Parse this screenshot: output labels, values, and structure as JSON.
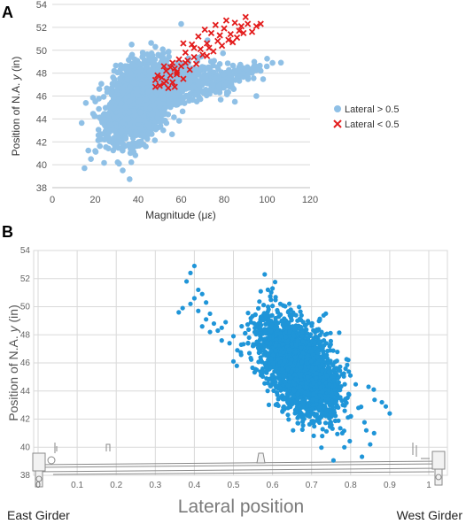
{
  "panels": {
    "a": {
      "label": "A"
    },
    "b": {
      "label": "B"
    }
  },
  "chart_data": [
    {
      "type": "scatter",
      "panel": "A",
      "xlabel": "Magnitude (με)",
      "ylabel_parts": [
        "Position of N.A. ",
        "y",
        " (in)"
      ],
      "xlim": [
        0,
        120
      ],
      "ylim": [
        38,
        54
      ],
      "xticks": [
        0,
        20,
        40,
        60,
        80,
        100,
        120
      ],
      "yticks": [
        38,
        40,
        42,
        44,
        46,
        48,
        50,
        52,
        54
      ],
      "grid": "horizontal",
      "legend_position": "right",
      "series": [
        {
          "name": "Lateral > 0.5",
          "marker": "circle",
          "color": "#8fc0e6",
          "clusters": [
            {
              "cx": 40,
              "cy": 45.5,
              "sx": 7,
              "sy": 1.6,
              "n": 1700
            },
            {
              "cx": 58,
              "cy": 47,
              "sx": 9,
              "sy": 1.0,
              "n": 350
            },
            {
              "cx": 80,
              "cy": 47.3,
              "sx": 8,
              "sy": 0.5,
              "n": 160
            }
          ],
          "points": [
            [
              15,
              39.7
            ],
            [
              18,
              40.5
            ],
            [
              20,
              41.2
            ],
            [
              60,
              52.3
            ],
            [
              95,
              46
            ],
            [
              97,
              48.2
            ],
            [
              85,
              45.5
            ],
            [
              22,
              42.2
            ],
            [
              33,
              41.8
            ]
          ]
        },
        {
          "name": "Lateral < 0.5",
          "marker": "x",
          "color": "#e31b1b",
          "points": [
            [
              48,
              47.4
            ],
            [
              49,
              47.8
            ],
            [
              50,
              46.9
            ],
            [
              51,
              47.6
            ],
            [
              52,
              47.1
            ],
            [
              53,
              48.2
            ],
            [
              53,
              47.3
            ],
            [
              54,
              46.7
            ],
            [
              55,
              48.5
            ],
            [
              55,
              47.8
            ],
            [
              56,
              48.9
            ],
            [
              56,
              47.2
            ],
            [
              57,
              48.4
            ],
            [
              57,
              46.8
            ],
            [
              58,
              47.9
            ],
            [
              59,
              49.2
            ],
            [
              60,
              48.6
            ],
            [
              61,
              47.5
            ],
            [
              62,
              49.8
            ],
            [
              63,
              49.1
            ],
            [
              64,
              48.3
            ],
            [
              65,
              50.5
            ],
            [
              66,
              49.4
            ],
            [
              67,
              48.8
            ],
            [
              68,
              51.2
            ],
            [
              69,
              50.1
            ],
            [
              70,
              49.6
            ],
            [
              71,
              51.8
            ],
            [
              72,
              50.6
            ],
            [
              73,
              50.2
            ],
            [
              74,
              51.5
            ],
            [
              75,
              49.9
            ],
            [
              76,
              52.2
            ],
            [
              77,
              50.8
            ],
            [
              78,
              51.3
            ],
            [
              79,
              50.4
            ],
            [
              80,
              51.9
            ],
            [
              81,
              52.6
            ],
            [
              82,
              50.9
            ],
            [
              83,
              51.4
            ],
            [
              84,
              50.7
            ],
            [
              85,
              52.4
            ],
            [
              86,
              51.1
            ],
            [
              87,
              51.7
            ],
            [
              88,
              52.1
            ],
            [
              89,
              51.5
            ],
            [
              90,
              52.9
            ],
            [
              91,
              52.3
            ],
            [
              93,
              51.6
            ],
            [
              95,
              52.1
            ],
            [
              97,
              52.3
            ],
            [
              52,
              48.6
            ],
            [
              58,
              48.1
            ],
            [
              62,
              48.9
            ],
            [
              66,
              50.2
            ],
            [
              72,
              49.5
            ],
            [
              48,
              46.8
            ],
            [
              61,
              50.6
            ]
          ]
        }
      ]
    },
    {
      "type": "scatter",
      "panel": "B",
      "xlabel": "Lateral position",
      "ylabel_parts": [
        "Position of N.A. ",
        "y",
        " (in)"
      ],
      "xlim": [
        0,
        1
      ],
      "ylim": [
        38,
        54
      ],
      "xticks": [
        "0",
        "0.1",
        "0.2",
        "0.3",
        "0.4",
        "0.5",
        "0.6",
        "0.7",
        "0.8",
        "0.9",
        "1"
      ],
      "yticks": [
        38,
        40,
        42,
        44,
        46,
        48,
        50,
        52,
        54
      ],
      "grid": "both",
      "left_annotation": "East Girder",
      "right_annotation": "West Girder",
      "series": [
        {
          "name": "",
          "marker": "circle",
          "color": "#1f95d8",
          "clusters": [
            {
              "cx": 0.67,
              "cy": 45.6,
              "sx": 0.05,
              "sy": 1.5,
              "n": 2400
            }
          ],
          "points": [
            [
              0.38,
              51.8
            ],
            [
              0.39,
              52.4
            ],
            [
              0.4,
              52.9
            ],
            [
              0.41,
              51.2
            ],
            [
              0.4,
              50.6
            ],
            [
              0.39,
              50.2
            ],
            [
              0.37,
              49.9
            ],
            [
              0.36,
              49.6
            ],
            [
              0.42,
              50.9
            ],
            [
              0.43,
              50.3
            ],
            [
              0.44,
              49.5
            ],
            [
              0.45,
              48.8
            ],
            [
              0.46,
              48.3
            ],
            [
              0.47,
              47.6
            ],
            [
              0.48,
              48.9
            ],
            [
              0.5,
              47.9
            ],
            [
              0.52,
              47.3
            ],
            [
              0.53,
              48.1
            ],
            [
              0.55,
              47.2
            ],
            [
              0.57,
              46.8
            ],
            [
              0.58,
              52.3
            ],
            [
              0.6,
              51.3
            ],
            [
              0.59,
              49.8
            ],
            [
              0.62,
              50.2
            ],
            [
              0.65,
              49.4
            ],
            [
              0.8,
              42.2
            ],
            [
              0.82,
              42.8
            ],
            [
              0.84,
              41.2
            ],
            [
              0.86,
              41.0
            ],
            [
              0.88,
              43.2
            ],
            [
              0.9,
              42.4
            ],
            [
              0.89,
              42.9
            ],
            [
              0.85,
              40.2
            ],
            [
              0.43,
              49.1
            ],
            [
              0.44,
              48.2
            ],
            [
              0.47,
              48.5
            ],
            [
              0.49,
              47.4
            ],
            [
              0.51,
              46.9
            ],
            [
              0.54,
              47.8
            ],
            [
              0.56,
              47.5
            ],
            [
              0.41,
              49.7
            ],
            [
              0.42,
              48.6
            ]
          ]
        }
      ]
    }
  ]
}
